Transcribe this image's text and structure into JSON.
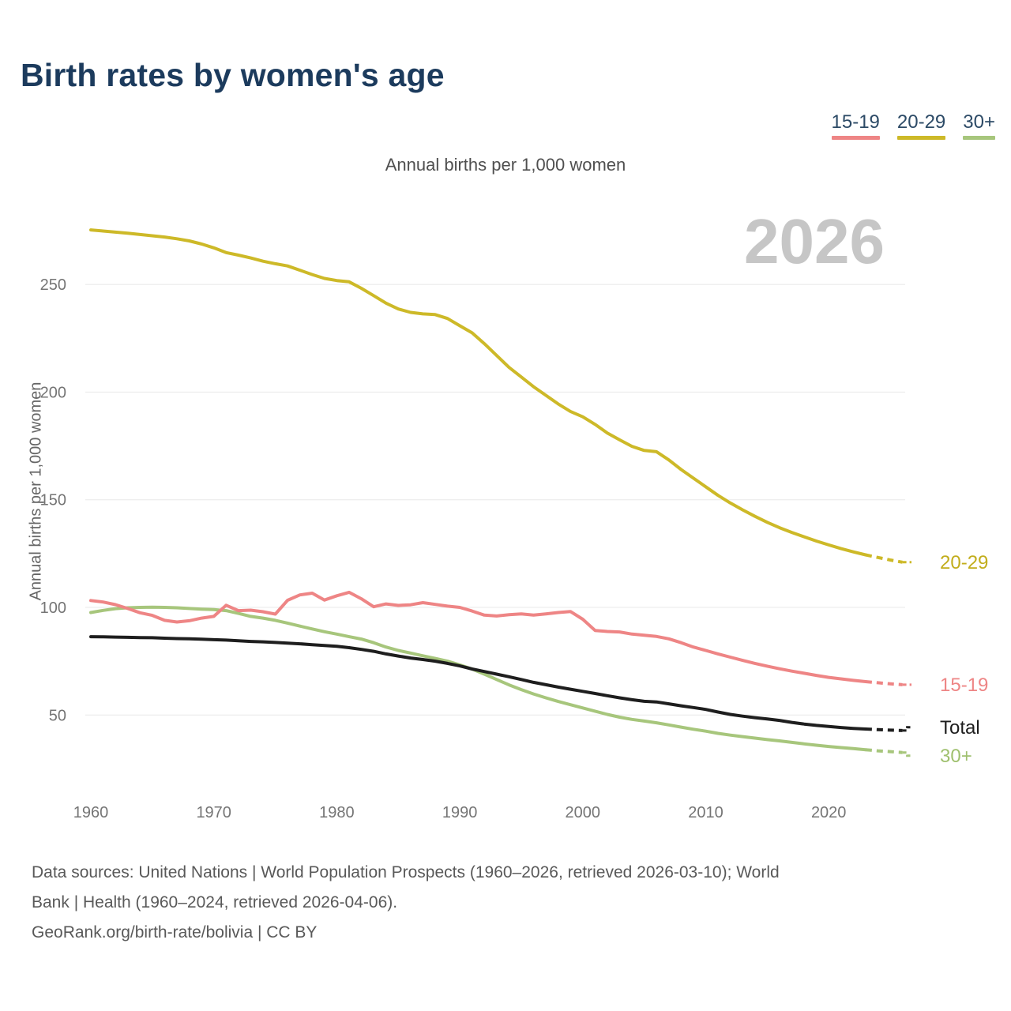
{
  "page": {
    "title": "Birth rates by women's age",
    "subtitle": "Annual births per 1,000 women",
    "watermark_year": "2026",
    "y_axis_title": "Annual births per 1,000 women"
  },
  "legend": {
    "items": [
      {
        "label": "15-19",
        "color": "#ee8585"
      },
      {
        "label": "20-29",
        "color": "#cdb928"
      },
      {
        "label": "30+",
        "color": "#a7c67c"
      }
    ]
  },
  "footer": {
    "sources_line1": "Data sources: United Nations | World Population Prospects (1960–2026, retrieved 2026-03-10); World",
    "sources_line2": "Bank | Health (1960–2024, retrieved 2026-04-06).",
    "attribution": "GeoRank.org/birth-rate/bolivia | CC BY"
  },
  "chart_data": {
    "type": "line",
    "title": "Birth rates by women's age",
    "subtitle": "Annual births per 1,000 women",
    "ylabel": "Annual births per 1,000 women",
    "x_axis_ticks": [
      1960,
      1970,
      1980,
      1990,
      2000,
      2010,
      2020
    ],
    "y_axis_ticks": [
      50,
      100,
      150,
      200,
      250
    ],
    "xlim": [
      1960,
      2026
    ],
    "ylim": [
      25,
      290
    ],
    "grid": "horizontal",
    "legend_position": "top-right",
    "projection_start_year": 2023,
    "flag_icon": {
      "name": "bolivia-flag-icon",
      "colors": [
        "#ce2031",
        "#f3cf33",
        "#57a03c"
      ]
    },
    "years": [
      1960,
      1961,
      1962,
      1963,
      1964,
      1965,
      1966,
      1967,
      1968,
      1969,
      1970,
      1971,
      1972,
      1973,
      1974,
      1975,
      1976,
      1977,
      1978,
      1979,
      1980,
      1981,
      1982,
      1983,
      1984,
      1985,
      1986,
      1987,
      1988,
      1989,
      1990,
      1991,
      1992,
      1993,
      1994,
      1995,
      1996,
      1997,
      1998,
      1999,
      2000,
      2001,
      2002,
      2003,
      2004,
      2005,
      2006,
      2007,
      2008,
      2009,
      2010,
      2011,
      2012,
      2013,
      2014,
      2015,
      2016,
      2017,
      2018,
      2019,
      2020,
      2021,
      2022,
      2023,
      2024,
      2025,
      2026
    ],
    "series": [
      {
        "id": "30plus",
        "label": "30+",
        "color": "#a7c67c",
        "label_color": "#9fc06e",
        "values": [
          97.6,
          98.6,
          99.4,
          99.8,
          100.0,
          100.1,
          100.0,
          99.8,
          99.5,
          99.2,
          99.0,
          98.5,
          97.2,
          95.8,
          95.0,
          94.0,
          92.7,
          91.3,
          90.0,
          88.7,
          87.6,
          86.4,
          85.3,
          83.6,
          81.6,
          80.0,
          78.8,
          77.5,
          76.3,
          75.0,
          73.3,
          71.4,
          69.0,
          66.5,
          64.0,
          61.8,
          59.8,
          58.0,
          56.3,
          54.8,
          53.3,
          51.8,
          50.3,
          49.0,
          48.0,
          47.2,
          46.4,
          45.4,
          44.4,
          43.4,
          42.5,
          41.5,
          40.7,
          40.0,
          39.3,
          38.6,
          38.0,
          37.3,
          36.6,
          36.0,
          35.4,
          34.9,
          34.4,
          33.9,
          33.4,
          33.0,
          32.6
        ]
      },
      {
        "id": "total",
        "label": "Total",
        "color": "#1e1e1e",
        "label_color": "#1e1e1e",
        "values": [
          86.4,
          86.3,
          86.2,
          86.1,
          86.0,
          85.9,
          85.7,
          85.5,
          85.4,
          85.2,
          85.0,
          84.8,
          84.5,
          84.2,
          84.0,
          83.7,
          83.4,
          83.1,
          82.7,
          82.3,
          81.9,
          81.3,
          80.5,
          79.6,
          78.4,
          77.4,
          76.5,
          75.8,
          75.0,
          74.0,
          72.8,
          71.4,
          70.2,
          69.0,
          67.8,
          66.5,
          65.2,
          64.1,
          63.0,
          62.0,
          61.0,
          60.0,
          59.0,
          58.0,
          57.1,
          56.4,
          56.1,
          55.2,
          54.3,
          53.5,
          52.6,
          51.4,
          50.3,
          49.5,
          48.8,
          48.2,
          47.5,
          46.6,
          45.8,
          45.2,
          44.7,
          44.2,
          43.8,
          43.5,
          43.2,
          43.0,
          42.8
        ]
      },
      {
        "id": "20-29",
        "label": "20-29",
        "color": "#cdb928",
        "label_color": "#c2ad1c",
        "values": [
          275.3,
          274.8,
          274.3,
          273.8,
          273.2,
          272.6,
          272.0,
          271.2,
          270.2,
          268.8,
          267.0,
          264.8,
          263.6,
          262.3,
          260.8,
          259.6,
          258.6,
          256.6,
          254.6,
          252.8,
          251.8,
          251.2,
          248.2,
          244.8,
          241.3,
          238.6,
          237.0,
          236.3,
          236.0,
          234.2,
          230.8,
          227.5,
          222.5,
          217.0,
          211.5,
          207.0,
          202.5,
          198.5,
          194.5,
          191.0,
          188.5,
          185.0,
          181.0,
          177.8,
          174.8,
          172.9,
          172.3,
          168.5,
          164.0,
          160.0,
          156.0,
          152.0,
          148.5,
          145.3,
          142.3,
          139.5,
          137.0,
          134.8,
          132.8,
          130.8,
          129.0,
          127.3,
          125.8,
          124.4,
          123.2,
          122.0,
          121.0
        ]
      },
      {
        "id": "15-19",
        "label": "15-19",
        "color": "#ee8585",
        "label_color": "#ee8585",
        "values": [
          103.2,
          102.5,
          101.3,
          99.5,
          97.5,
          96.3,
          94.0,
          93.2,
          93.8,
          95.0,
          95.8,
          101.0,
          98.5,
          98.7,
          98.0,
          96.9,
          103.3,
          105.8,
          106.6,
          103.4,
          105.4,
          107.0,
          104.0,
          100.3,
          101.6,
          100.9,
          101.2,
          102.2,
          101.4,
          100.6,
          100.0,
          98.3,
          96.4,
          96.0,
          96.6,
          97.0,
          96.4,
          97.0,
          97.6,
          98.1,
          94.5,
          89.3,
          88.8,
          88.6,
          87.6,
          87.1,
          86.5,
          85.4,
          83.6,
          81.6,
          80.0,
          78.4,
          76.9,
          75.4,
          74.0,
          72.7,
          71.5,
          70.4,
          69.4,
          68.4,
          67.5,
          66.8,
          66.1,
          65.5,
          65.0,
          64.5,
          64.1
        ]
      }
    ]
  }
}
